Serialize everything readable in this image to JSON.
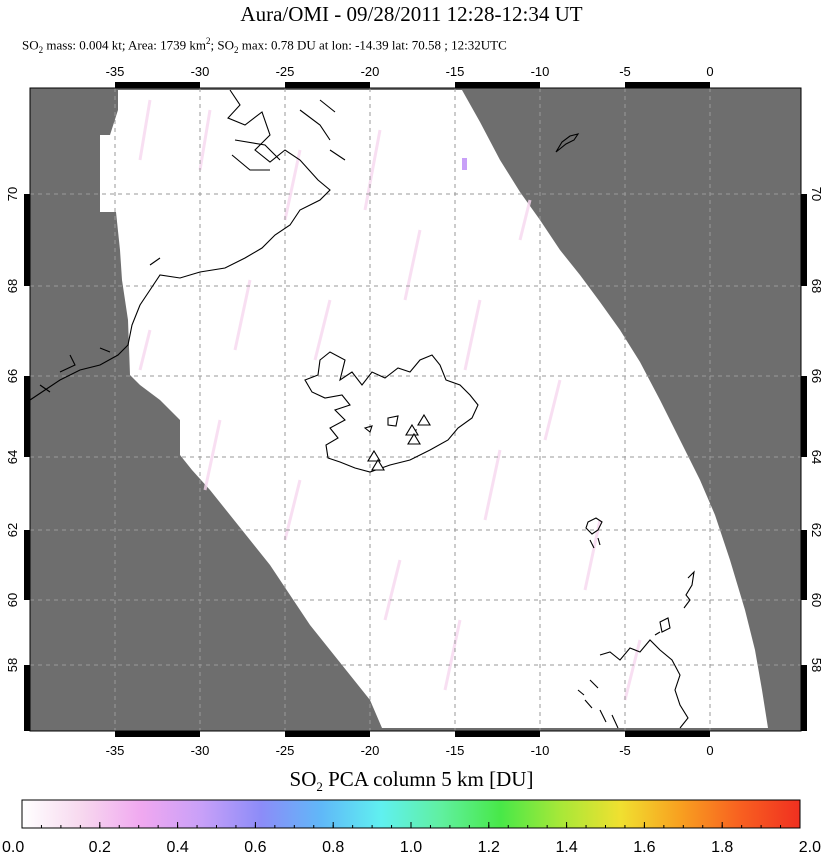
{
  "title": "Aura/OMI - 09/28/2011 12:28-12:34 UT",
  "subtitle": {
    "part1": "SO",
    "part1_sub": "2",
    "part2": " mass: 0.004 kt; Area: 1739 km",
    "part2_sup": "2",
    "part3": "; SO",
    "part3_sub": "2",
    "part4": " max: 0.78 DU at lon: -14.39 lat: 70.58 ; 12:32UTC"
  },
  "map": {
    "lon_ticks": [
      "-35",
      "-30",
      "-25",
      "-20",
      "-15",
      "-10",
      "-5",
      "0"
    ],
    "lat_ticks": [
      "70",
      "68",
      "66",
      "64",
      "62",
      "60",
      "58"
    ],
    "lon_range": [
      -40,
      5.5
    ],
    "lat_range": [
      56.2,
      72.5
    ],
    "no_data_color": "#6e6e6e",
    "swath_color": "#ffffff",
    "coast_color": "#000000",
    "grid_color": "#9a9a9a",
    "volcano_marker": "triangle-icon"
  },
  "colorbar": {
    "title_pre": "SO",
    "title_sub": "2",
    "title_post": " PCA column 5 km [DU]",
    "ticks": [
      "0.0",
      "0.2",
      "0.4",
      "0.6",
      "0.8",
      "1.0",
      "1.2",
      "1.4",
      "1.6",
      "1.8",
      "2.0"
    ],
    "range": [
      0.0,
      2.0
    ],
    "colors": [
      "#ffffff",
      "#f7d8ef",
      "#f0a8f0",
      "#c8a0f8",
      "#8c8cf8",
      "#60b8f8",
      "#60f0f0",
      "#60f0a0",
      "#48e848",
      "#a8e838",
      "#f0e030",
      "#f8a020",
      "#f86020",
      "#f03020"
    ]
  }
}
